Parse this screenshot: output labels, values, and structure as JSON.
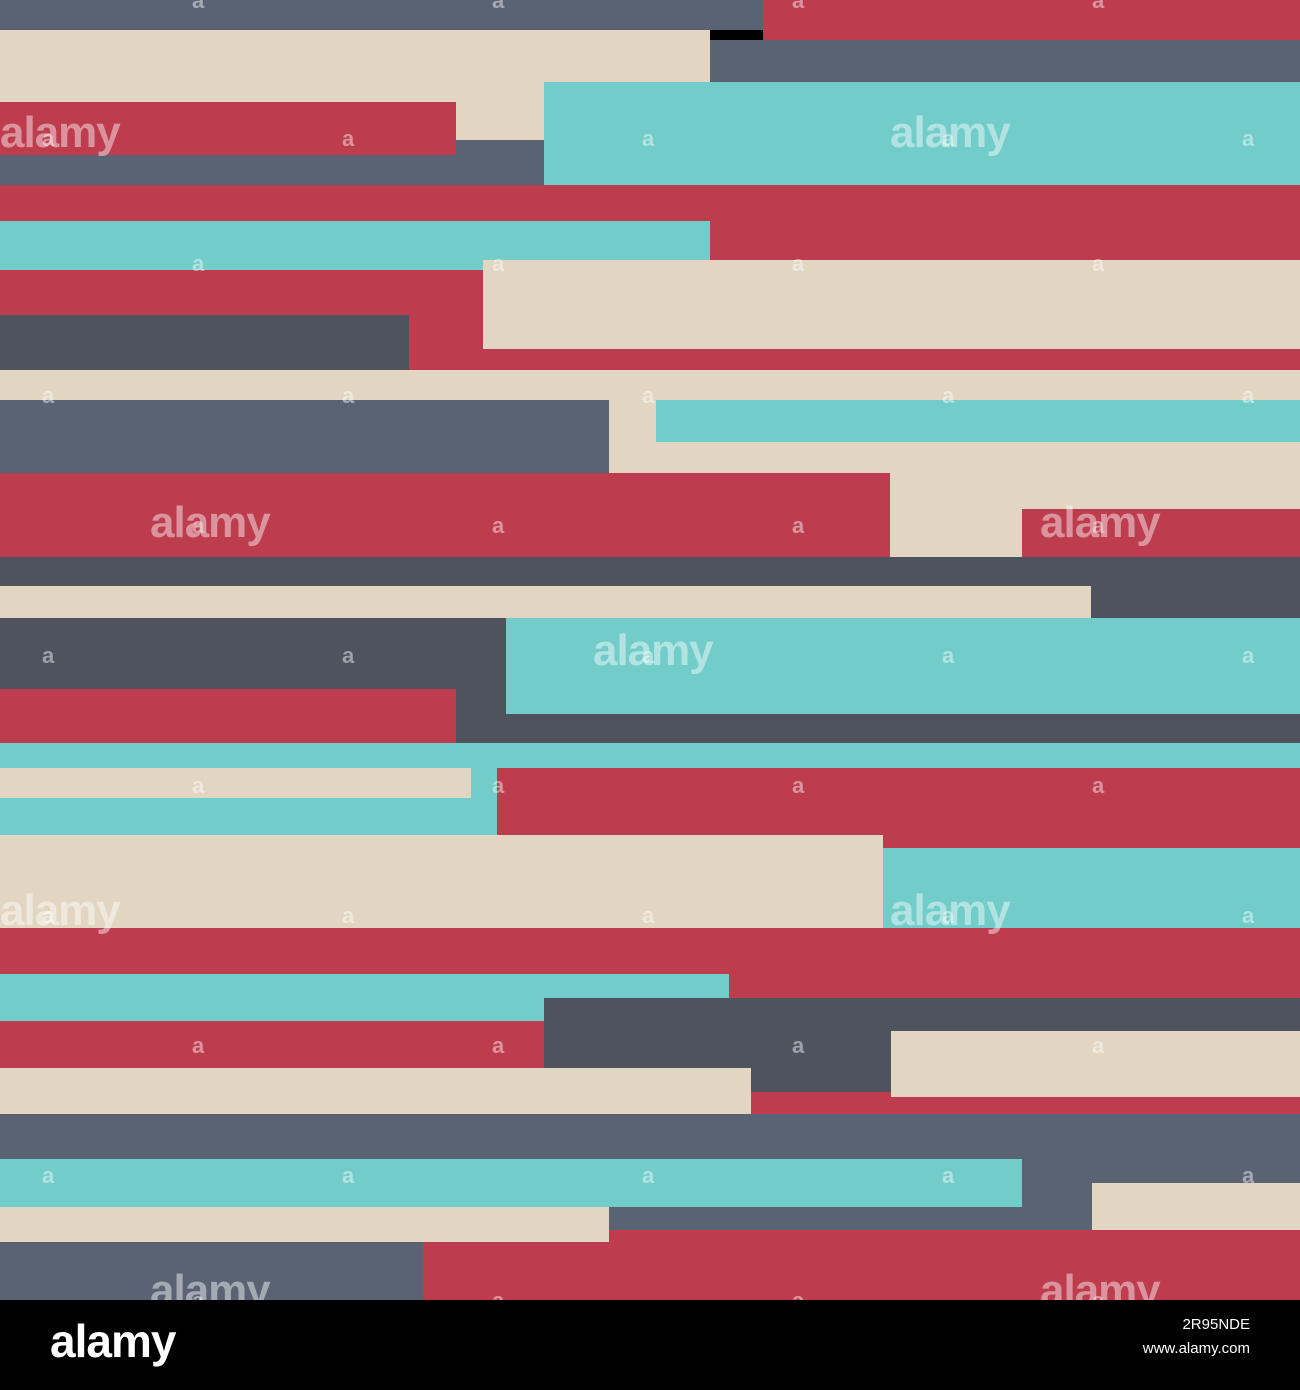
{
  "palette": {
    "red": "#bd3c4e",
    "cream": "#e2d6c2",
    "teal": "#72cdca",
    "slate": "#5a6374",
    "charcoal": "#4e535d",
    "footer_bg": "#000000",
    "footer_text": "#ffffff"
  },
  "watermark": {
    "word": "alamy",
    "letter": "a"
  },
  "footer": {
    "logo": "alamy",
    "image_id": "2R95NDE",
    "url": "www.alamy.com"
  }
}
